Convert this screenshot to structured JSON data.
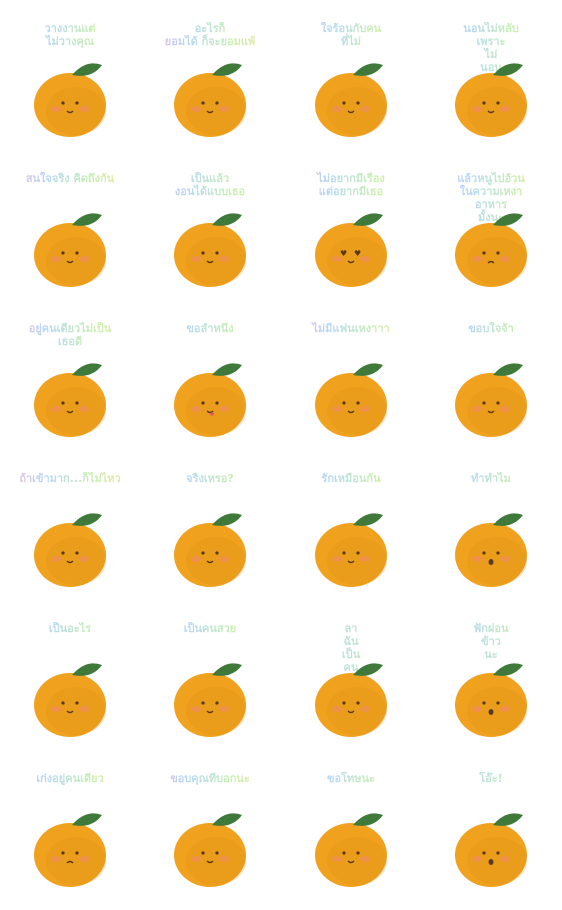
{
  "colors": {
    "orange": "#f0a21f",
    "orange_shadow": "#d98a0e",
    "leaf": "#3f7a3a",
    "blush": "#f28b6a",
    "face": "#5a3a1a",
    "bg": "#ffffff"
  },
  "stickers": [
    {
      "caption": "วางงานแต่\nไม่วางคุณ",
      "mood": "smile-wink"
    },
    {
      "caption": "อะไรก็\nยอมได้    ก็จะยอมแพ้",
      "mood": "calm"
    },
    {
      "caption": "ใจร้อนกับคน\nที่ไม่",
      "mood": "calm"
    },
    {
      "caption": "นอนไม่หลับ\nเพราะ\nไม่\nนอน",
      "mood": "sleepy"
    },
    {
      "caption": "สนใจจริง คิดถึงกัน",
      "mood": "calm"
    },
    {
      "caption": "เป็นแล้ว\nงอนได้แบบเธอ",
      "mood": "shy"
    },
    {
      "caption": "ไม่อยากมีเรื่อง\nแต่อยากมีเธอ",
      "mood": "love"
    },
    {
      "caption": "แล้วหนูไปอ้วน\nในความเหงา\nอาหาร\nมั้งนะ",
      "mood": "annoyed"
    },
    {
      "caption": "อยู่คนเดียวไม่เป็น\nเธอดี",
      "mood": "calm"
    },
    {
      "caption": "ขอลำหนึ่ง",
      "mood": "tongue"
    },
    {
      "caption": "ไม่มีแฟนเหงาาา",
      "mood": "calm"
    },
    {
      "caption": "ขอบใจจ้า",
      "mood": "kiss"
    },
    {
      "caption": "ถ้าเข้ามาก...ก็ไม่ไหว",
      "mood": "happy"
    },
    {
      "caption": "จริงเหรอ?",
      "mood": "doubt"
    },
    {
      "caption": "รักเหมือนกัน",
      "mood": "wink"
    },
    {
      "caption": "ทำทำไม",
      "mood": "open"
    },
    {
      "caption": "เป็นอะไร",
      "mood": "calm"
    },
    {
      "caption": "เป็นคนสวย",
      "mood": "smirk"
    },
    {
      "caption": "ลา\nฉัน\nเป็น\nคน\nดี",
      "mood": "smirk"
    },
    {
      "caption": "ฟักฝอน\nข้าว\nนะ",
      "mood": "open"
    },
    {
      "caption": "เก่งอยู่คนเดียว",
      "mood": "sad"
    },
    {
      "caption": "ขอบคุณที่บอกนะ",
      "mood": "calm"
    },
    {
      "caption": "ขอโทษนะ",
      "mood": "calm"
    },
    {
      "caption": "โอ๊ะ!",
      "mood": "surprised"
    }
  ]
}
